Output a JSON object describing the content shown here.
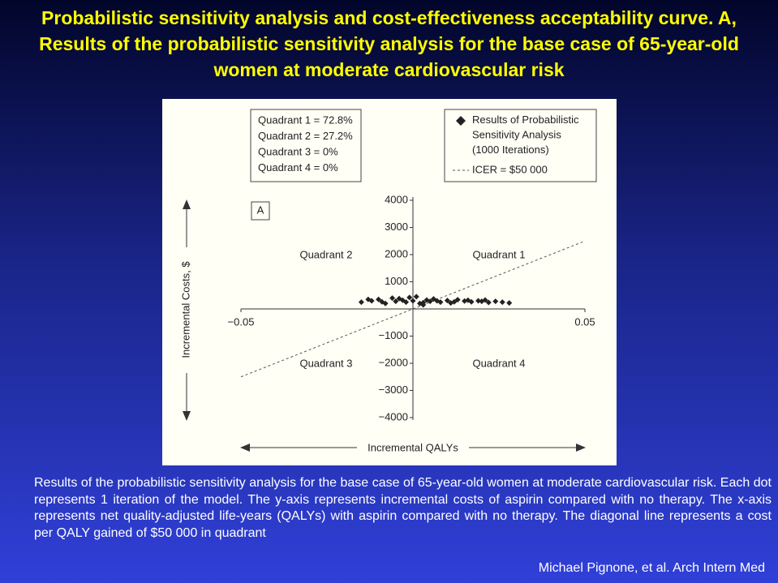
{
  "title": "Probabilistic sensitivity analysis and cost-effectiveness acceptability curve. A, Results of the probabilistic sensitivity analysis for the base case of 65-year-old women at moderate cardiovascular risk",
  "chart_data": {
    "type": "scatter",
    "panel_label": "A",
    "xlabel": "Incremental QALYs",
    "ylabel": "Incremental Costs, $",
    "quadrant_shares": [
      "Quadrant 1 = 72.8%",
      "Quadrant 2 = 27.2%",
      "Quadrant 3 = 0%",
      "Quadrant 4 = 0%"
    ],
    "quadrant_labels": [
      "Quadrant 1",
      "Quadrant 2",
      "Quadrant 3",
      "Quadrant 4"
    ],
    "xlim": [
      -0.05,
      0.05
    ],
    "xticks": [
      {
        "value": -0.05,
        "label": "−0.05"
      },
      0.05
    ],
    "ylim": [
      -4000,
      4000
    ],
    "yticks": [
      {
        "value": -4000,
        "label": "−4000"
      },
      {
        "value": -3000,
        "label": "−3000"
      },
      {
        "value": -2000,
        "label": "−2000"
      },
      {
        "value": -1000,
        "label": "−1000"
      },
      1000,
      2000,
      3000,
      4000
    ],
    "series": [
      {
        "name": "Results of Probabilistic Sensitivity Analysis (1000 Iterations)",
        "color": "#222222",
        "x": [
          -0.015,
          -0.012,
          -0.01,
          -0.008,
          -0.006,
          -0.005,
          -0.003,
          -0.002,
          0,
          0.001,
          0.002,
          0.004,
          0.005,
          0.006,
          0.008,
          0.01,
          0.011,
          0.013,
          0.015,
          0.017,
          0.019,
          0.021,
          0.022,
          0.024,
          0.026,
          0.028,
          -0.013,
          -0.009,
          -0.004,
          0.003,
          0.007,
          0.012,
          0.016,
          0.02,
          0.003,
          -0.001
        ],
        "values": [
          250,
          300,
          350,
          200,
          400,
          280,
          320,
          250,
          300,
          450,
          200,
          330,
          280,
          370,
          250,
          310,
          220,
          340,
          290,
          260,
          300,
          330,
          240,
          280,
          250,
          220,
          350,
          260,
          380,
          230,
          300,
          260,
          320,
          280,
          150,
          420
        ]
      }
    ],
    "icer_line": {
      "name": "ICER = $50 000",
      "slope": 50000,
      "color": "#555555"
    }
  },
  "caption": "Results of the probabilistic sensitivity analysis for the base case of 65-year-old women at moderate cardiovascular risk. Each dot represents 1 iteration of the model. The y-axis represents incremental costs of aspirin compared with no therapy. The x-axis represents net quality-adjusted life-years (QALYs) with aspirin compared with no therapy. The diagonal line represents a cost per QALY gained of $50 000 in quadrant",
  "citation": "Michael Pignone, et al. Arch Intern Med"
}
